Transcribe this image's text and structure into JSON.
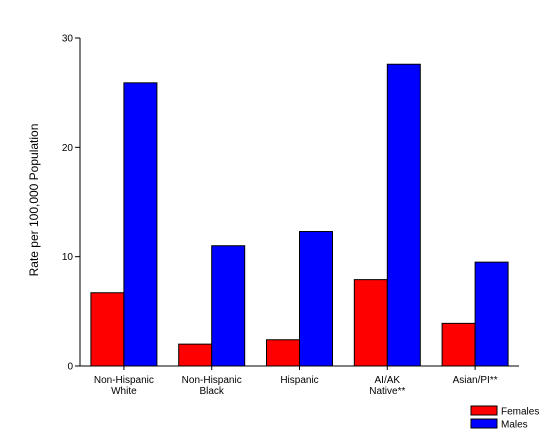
{
  "chart_data": {
    "type": "bar",
    "categories": [
      [
        "Non-Hispanic",
        "White"
      ],
      [
        "Non-Hispanic",
        "Black"
      ],
      [
        "Hispanic"
      ],
      [
        "AI/AK",
        "Native**"
      ],
      [
        "Asian/PI**"
      ]
    ],
    "series": [
      {
        "name": "Females",
        "color": "#ff0000",
        "values": [
          6.7,
          2.0,
          2.4,
          7.9,
          3.9
        ]
      },
      {
        "name": "Males",
        "color": "#0000ff",
        "values": [
          25.9,
          11.0,
          12.3,
          27.6,
          9.5
        ]
      }
    ],
    "ylabel": "Rate per 100,000 Population",
    "ylim": [
      0,
      30
    ],
    "yticks": [
      0,
      10,
      20,
      30
    ],
    "legend_position": "bottom-right",
    "grid": false
  }
}
